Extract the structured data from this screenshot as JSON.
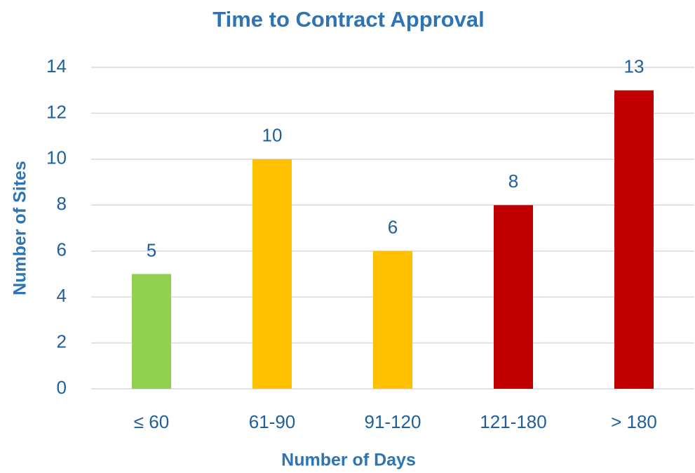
{
  "chart_data": {
    "type": "bar",
    "title": "Time to Contract Approval",
    "x_label": "Number of Days",
    "y_label": "Number of Sites",
    "categories": [
      "≤ 60",
      "61-90",
      "91-120",
      "121-180",
      "> 180"
    ],
    "values": [
      5,
      10,
      6,
      8,
      13
    ],
    "colors": [
      "#92d050",
      "#ffc000",
      "#ffc000",
      "#c00000",
      "#c00000"
    ],
    "ylim": [
      0,
      14
    ],
    "yticks": [
      0,
      2,
      4,
      6,
      8,
      10,
      12,
      14
    ],
    "grid": true
  }
}
